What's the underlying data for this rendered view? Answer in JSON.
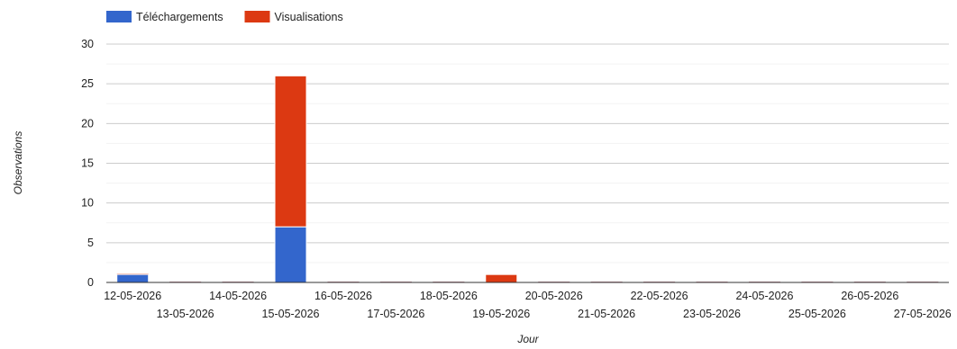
{
  "chart_data": {
    "type": "bar",
    "stacked": true,
    "categories": [
      "12-05-2026",
      "13-05-2026",
      "14-05-2026",
      "15-05-2026",
      "16-05-2026",
      "17-05-2026",
      "18-05-2026",
      "19-05-2026",
      "20-05-2026",
      "21-05-2026",
      "22-05-2026",
      "23-05-2026",
      "24-05-2026",
      "25-05-2026",
      "26-05-2026",
      "27-05-2026"
    ],
    "series": [
      {
        "name": "Téléchargements",
        "color": "#3366cc",
        "values": [
          1,
          0,
          0,
          7,
          0,
          0,
          0,
          0,
          0,
          0,
          0,
          0,
          0,
          0,
          0,
          0
        ]
      },
      {
        "name": "Visualisations",
        "color": "#dc3912",
        "values": [
          0,
          0,
          0,
          19,
          0,
          0,
          0,
          1,
          0,
          0,
          0,
          0,
          0,
          0,
          0,
          0
        ]
      }
    ],
    "xlabel": "Jour",
    "ylabel": "Observations",
    "ylim": [
      0,
      30
    ],
    "yticks": [
      0,
      5,
      10,
      15,
      20,
      25,
      30
    ],
    "grid": true,
    "legend_position": "top-left"
  }
}
